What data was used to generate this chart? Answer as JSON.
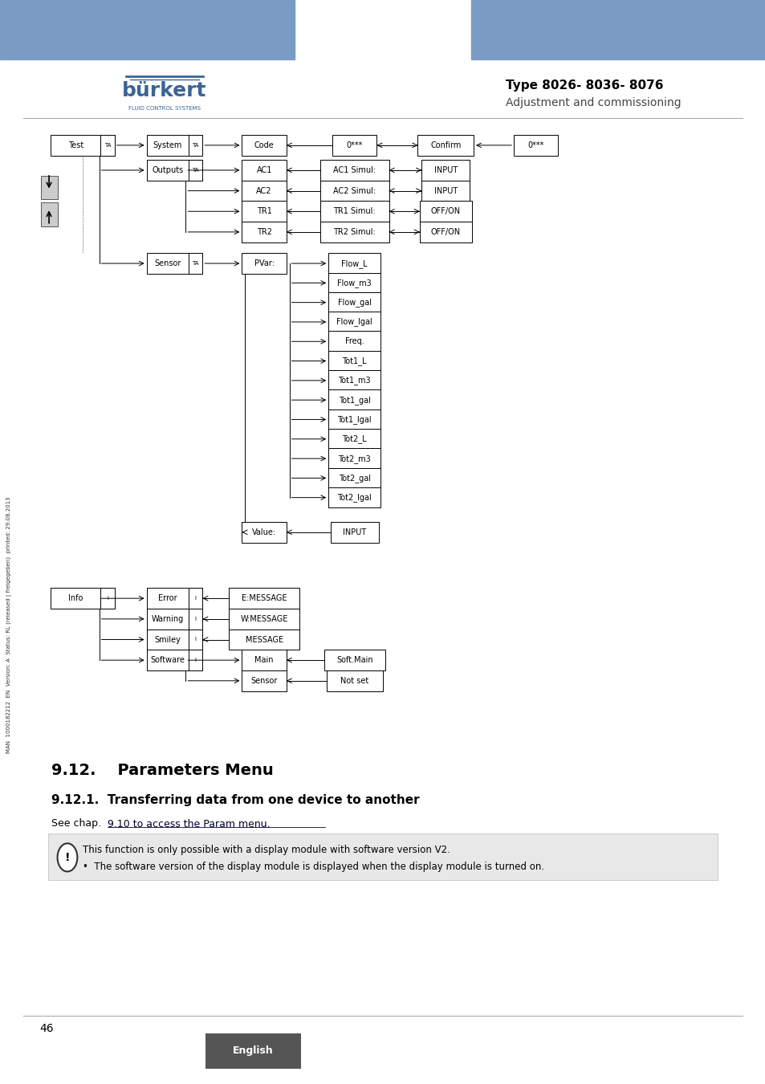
{
  "header_bar_color": "#7a9cc4",
  "header_text_type": "Type 8026- 8036- 8076",
  "header_text_sub": "Adjustment and commissioning",
  "logo_text_main": "bürkert",
  "logo_text_sub": "FLUID CONTROL SYSTEMS",
  "background_color": "#ffffff",
  "sidebar_text": "MAN  1000182212  EN  Version: A  Status: RL (released | freigegeben)  printed: 29.08.2013",
  "section_title": "9.12.    Parameters Menu",
  "subsection_title": "9.12.1.  Transferring data from one device to another",
  "body_text_prefix": "See chap. ",
  "body_text_link": "9.10 to access the Param menu.",
  "notice_bg": "#e8e8e8",
  "notice_line1": "This function is only possible with a display module with software version V2.",
  "notice_line2": "•  The software version of the display module is displayed when the display module is turned on.",
  "footer_page": "46",
  "footer_btn_text": "English",
  "footer_btn_bg": "#555555",
  "footer_btn_text_color": "#ffffff"
}
